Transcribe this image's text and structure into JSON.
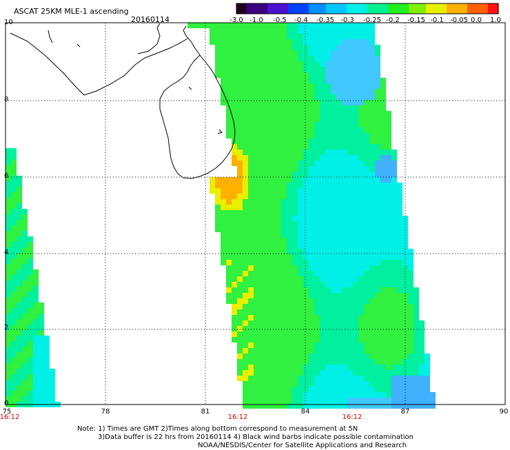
{
  "title": "ASCAT 25KM MLE-1 ascending",
  "date": "20160114",
  "colorbar": {
    "ticks": [
      "-3.0",
      "-1.0",
      "-0.5",
      "-0.4",
      "-0.35",
      "-0.3",
      "-0.25",
      "-0.2",
      "-0.15",
      "-0.1",
      "-0.05",
      "0.0",
      "1.0"
    ],
    "colors": [
      "#200020",
      "#3a0080",
      "#4b10d0",
      "#0040ff",
      "#0090ff",
      "#00c8ff",
      "#00f0e8",
      "#00f090",
      "#20f020",
      "#80f000",
      "#e8f000",
      "#ffb000",
      "#ff6000",
      "#ff1010"
    ]
  },
  "axes": {
    "x_ticks": [
      "75",
      "78",
      "81",
      "84",
      "87",
      "90"
    ],
    "y_ticks": [
      "0",
      "2",
      "4",
      "6",
      "8",
      "10"
    ],
    "xlim": [
      75,
      90
    ],
    "ylim": [
      0,
      10
    ]
  },
  "pass_times": [
    "16:12",
    "16:12",
    "16:12"
  ],
  "notes": [
    "Note: 1) Times are GMT 2)Times along bottom correspond to measurement at 5N",
    "3)Data buffer is 22 hrs from 20160114 4) Black wind barbs indicate possible contamination",
    "NOAA/NESDIS/Center for Satellite Applications and Research"
  ]
}
